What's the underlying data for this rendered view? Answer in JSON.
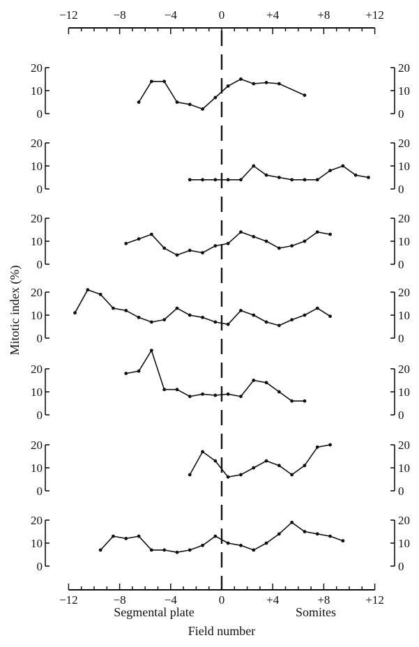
{
  "figure": {
    "ylabel": "Mitotic index (%)",
    "xlabel": "Field number",
    "left_region_label": "Segmental plate",
    "right_region_label": "Somites"
  },
  "chart_data": {
    "type": "line",
    "x_axis": {
      "range": [
        -12,
        12
      ],
      "ticks": [
        -12,
        -8,
        -4,
        0,
        4,
        8,
        12
      ],
      "top_tick_labels": [
        "−12",
        "−8",
        "−4",
        "0",
        "+4",
        "+8",
        "+12"
      ],
      "bottom_tick_labels": [
        "−12",
        "−8",
        "−4",
        "0",
        "+4",
        "+8",
        "+12"
      ]
    },
    "y_axis": {
      "range": [
        0,
        20
      ],
      "ticks": [
        0,
        10,
        20
      ],
      "tick_labels": [
        "0",
        "10",
        "20"
      ]
    },
    "vertical_dashed_line_at_x": 0,
    "grid": false,
    "panels": [
      {
        "x": [
          -6.5,
          -5.5,
          -4.5,
          -3.5,
          -2.5,
          -1.5,
          -0.5,
          0.5,
          1.5,
          2.5,
          3.5,
          4.5,
          6.5
        ],
        "y": [
          5,
          14,
          14,
          5,
          4,
          2,
          7,
          12,
          15,
          13,
          13.5,
          13,
          8
        ]
      },
      {
        "x": [
          -2.5,
          -1.5,
          -0.5,
          0.5,
          1.5,
          2.5,
          3.5,
          4.5,
          5.5,
          6.5,
          7.5,
          8.5,
          9.5,
          10.5,
          11.5
        ],
        "y": [
          4,
          4,
          4,
          4,
          4,
          10,
          6,
          5,
          4,
          4,
          4,
          8,
          10,
          6,
          5
        ]
      },
      {
        "x": [
          -7.5,
          -6.5,
          -5.5,
          -4.5,
          -3.5,
          -2.5,
          -1.5,
          -0.5,
          0.5,
          1.5,
          2.5,
          3.5,
          4.5,
          5.5,
          6.5,
          7.5,
          8.5
        ],
        "y": [
          9,
          11,
          13,
          7,
          4,
          6,
          5,
          8,
          9,
          14,
          12,
          10,
          7,
          8,
          10,
          14,
          13
        ]
      },
      {
        "x": [
          -11.5,
          -10.5,
          -9.5,
          -8.5,
          -7.5,
          -6.5,
          -5.5,
          -4.5,
          -3.5,
          -2.5,
          -1.5,
          -0.5,
          0.5,
          1.5,
          2.5,
          3.5,
          4.5,
          5.5,
          6.5,
          7.5,
          8.5
        ],
        "y": [
          11,
          21,
          19,
          13,
          12,
          9,
          7,
          8,
          13,
          10,
          9,
          7,
          6,
          12,
          10,
          7,
          5.5,
          8,
          10,
          13,
          9.5
        ]
      },
      {
        "x": [
          -7.5,
          -6.5,
          -5.5,
          -4.5,
          -3.5,
          -2.5,
          -1.5,
          -0.5,
          0.5,
          1.5,
          2.5,
          3.5,
          4.5,
          5.5,
          6.5
        ],
        "y": [
          18,
          19,
          28,
          11,
          11,
          8,
          9,
          8.5,
          9,
          8,
          15,
          14,
          10,
          6,
          6
        ]
      },
      {
        "x": [
          -2.5,
          -1.5,
          -0.5,
          0.5,
          1.5,
          2.5,
          3.5,
          4.5,
          5.5,
          6.5,
          7.5,
          8.5
        ],
        "y": [
          7,
          17,
          13,
          6,
          7,
          10,
          13,
          11,
          7,
          11,
          19,
          20
        ]
      },
      {
        "x": [
          -9.5,
          -8.5,
          -7.5,
          -6.5,
          -5.5,
          -4.5,
          -3.5,
          -2.5,
          -1.5,
          -0.5,
          0.5,
          1.5,
          2.5,
          3.5,
          4.5,
          5.5,
          6.5,
          7.5,
          8.5,
          9.5
        ],
        "y": [
          7,
          13,
          12,
          13,
          7,
          7,
          6,
          7,
          9,
          13,
          10,
          9,
          7,
          10,
          14,
          19,
          15,
          14,
          13,
          11
        ]
      }
    ]
  }
}
